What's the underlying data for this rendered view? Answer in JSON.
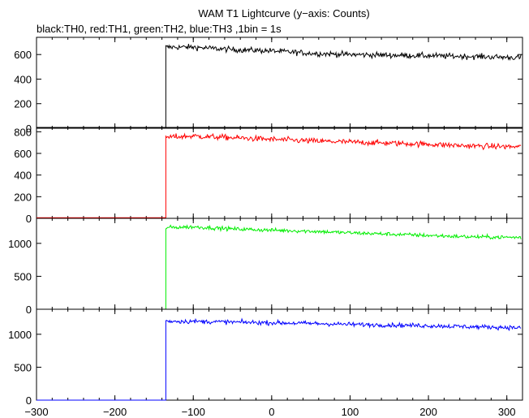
{
  "chart_data": {
    "type": "line",
    "title": "WAM T1 Lightcurve (y−axis: Counts)",
    "subtitle": "black:TH0, red:TH1, green:TH2, blue:TH3 ,1bin = 1s",
    "x_ticks": [
      "−300",
      "−200",
      "−100",
      "0",
      "100",
      "200",
      "300"
    ],
    "xlim": [
      -300,
      320
    ],
    "grid": false,
    "trigger_x": -135,
    "panels": [
      {
        "name": "TH0",
        "color": "#000000",
        "ylim": [
          0,
          740
        ],
        "y_ticks": [
          0,
          200,
          400,
          600
        ],
        "pre_level": 0,
        "points": [
          [
            -135,
            660
          ],
          [
            -100,
            660
          ],
          [
            -50,
            640
          ],
          [
            0,
            630
          ],
          [
            50,
            610
          ],
          [
            100,
            600
          ],
          [
            150,
            595
          ],
          [
            200,
            590
          ],
          [
            250,
            585
          ],
          [
            318,
            575
          ]
        ],
        "noise": 22
      },
      {
        "name": "TH1",
        "color": "#ff0000",
        "ylim": [
          0,
          840
        ],
        "y_ticks": [
          0,
          200,
          400,
          600,
          800
        ],
        "pre_level": 5,
        "points": [
          [
            -135,
            750
          ],
          [
            -100,
            760
          ],
          [
            -50,
            745
          ],
          [
            0,
            730
          ],
          [
            50,
            715
          ],
          [
            100,
            705
          ],
          [
            150,
            695
          ],
          [
            200,
            685
          ],
          [
            250,
            670
          ],
          [
            318,
            660
          ]
        ],
        "noise": 25
      },
      {
        "name": "TH2",
        "color": "#00ee00",
        "ylim": [
          0,
          1380
        ],
        "y_ticks": [
          0,
          500,
          1000
        ],
        "pre_level": 0,
        "points": [
          [
            -135,
            1240
          ],
          [
            -100,
            1250
          ],
          [
            -50,
            1220
          ],
          [
            0,
            1200
          ],
          [
            50,
            1185
          ],
          [
            100,
            1160
          ],
          [
            150,
            1140
          ],
          [
            200,
            1120
          ],
          [
            250,
            1100
          ],
          [
            318,
            1090
          ]
        ],
        "noise": 28
      },
      {
        "name": "TH3",
        "color": "#0000ff",
        "ylim": [
          0,
          1380
        ],
        "y_ticks": [
          0,
          500,
          1000
        ],
        "pre_level": 0,
        "points": [
          [
            -135,
            1200
          ],
          [
            -100,
            1195
          ],
          [
            -50,
            1185
          ],
          [
            0,
            1175
          ],
          [
            50,
            1165
          ],
          [
            100,
            1150
          ],
          [
            150,
            1140
          ],
          [
            200,
            1130
          ],
          [
            250,
            1115
          ],
          [
            318,
            1100
          ]
        ],
        "noise": 32
      }
    ]
  }
}
